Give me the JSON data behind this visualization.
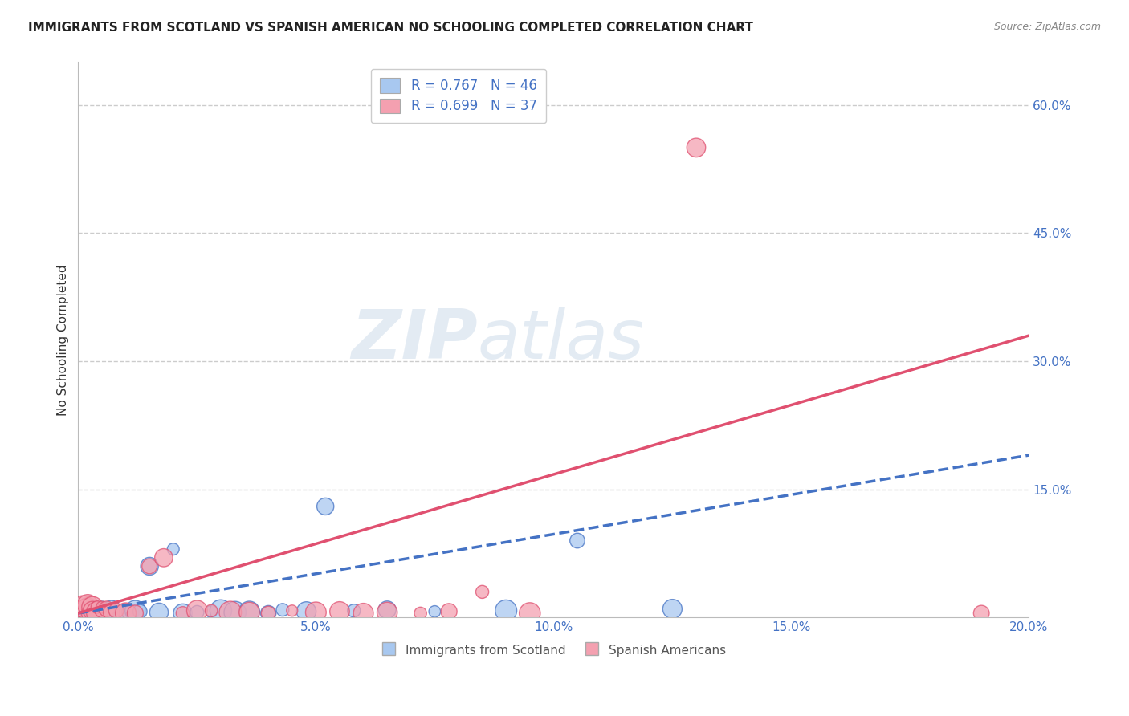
{
  "title": "IMMIGRANTS FROM SCOTLAND VS SPANISH AMERICAN NO SCHOOLING COMPLETED CORRELATION CHART",
  "source": "Source: ZipAtlas.com",
  "ylabel": "No Schooling Completed",
  "legend_label1": "Immigrants from Scotland",
  "legend_label2": "Spanish Americans",
  "R1": 0.767,
  "N1": 46,
  "R2": 0.699,
  "N2": 37,
  "color1": "#a8c8f0",
  "color1_line": "#4472c4",
  "color2": "#f4a0b0",
  "color2_line": "#e05070",
  "xlim": [
    0.0,
    0.2
  ],
  "ylim": [
    0.0,
    0.65
  ],
  "xtick_labels": [
    "0.0%",
    "5.0%",
    "10.0%",
    "15.0%",
    "20.0%"
  ],
  "xtick_vals": [
    0.0,
    0.05,
    0.1,
    0.15,
    0.2
  ],
  "ytick_right_labels": [
    "60.0%",
    "45.0%",
    "30.0%",
    "15.0%"
  ],
  "ytick_right_vals": [
    0.6,
    0.45,
    0.3,
    0.15
  ],
  "ytick_grid_vals": [
    0.6,
    0.45,
    0.3,
    0.15
  ],
  "watermark_zip": "ZIP",
  "watermark_atlas": "atlas",
  "background_color": "#ffffff",
  "grid_color": "#cccccc",
  "scatter1_x": [
    0.001,
    0.001,
    0.001,
    0.002,
    0.002,
    0.002,
    0.002,
    0.003,
    0.003,
    0.003,
    0.003,
    0.004,
    0.004,
    0.004,
    0.005,
    0.005,
    0.005,
    0.006,
    0.006,
    0.007,
    0.007,
    0.008,
    0.009,
    0.01,
    0.011,
    0.012,
    0.013,
    0.015,
    0.017,
    0.02,
    0.022,
    0.025,
    0.028,
    0.03,
    0.033,
    0.036,
    0.04,
    0.043,
    0.048,
    0.052,
    0.058,
    0.065,
    0.075,
    0.09,
    0.105,
    0.125
  ],
  "scatter1_y": [
    0.003,
    0.005,
    0.008,
    0.003,
    0.005,
    0.007,
    0.01,
    0.003,
    0.006,
    0.008,
    0.012,
    0.004,
    0.007,
    0.01,
    0.004,
    0.007,
    0.01,
    0.004,
    0.008,
    0.005,
    0.009,
    0.006,
    0.005,
    0.007,
    0.006,
    0.008,
    0.007,
    0.06,
    0.006,
    0.08,
    0.005,
    0.006,
    0.007,
    0.008,
    0.006,
    0.007,
    0.005,
    0.009,
    0.007,
    0.13,
    0.008,
    0.009,
    0.007,
    0.008,
    0.09,
    0.01
  ],
  "scatter2_x": [
    0.001,
    0.001,
    0.001,
    0.002,
    0.002,
    0.002,
    0.003,
    0.003,
    0.003,
    0.004,
    0.004,
    0.005,
    0.005,
    0.006,
    0.007,
    0.008,
    0.01,
    0.012,
    0.015,
    0.018,
    0.022,
    0.025,
    0.028,
    0.032,
    0.036,
    0.04,
    0.045,
    0.05,
    0.055,
    0.06,
    0.065,
    0.072,
    0.078,
    0.085,
    0.095,
    0.13,
    0.19
  ],
  "scatter2_y": [
    0.005,
    0.01,
    0.015,
    0.005,
    0.01,
    0.015,
    0.005,
    0.012,
    0.008,
    0.006,
    0.012,
    0.008,
    0.012,
    0.01,
    0.006,
    0.008,
    0.005,
    0.005,
    0.06,
    0.07,
    0.005,
    0.008,
    0.008,
    0.006,
    0.006,
    0.005,
    0.008,
    0.006,
    0.007,
    0.005,
    0.006,
    0.005,
    0.007,
    0.03,
    0.005,
    0.55,
    0.005
  ]
}
